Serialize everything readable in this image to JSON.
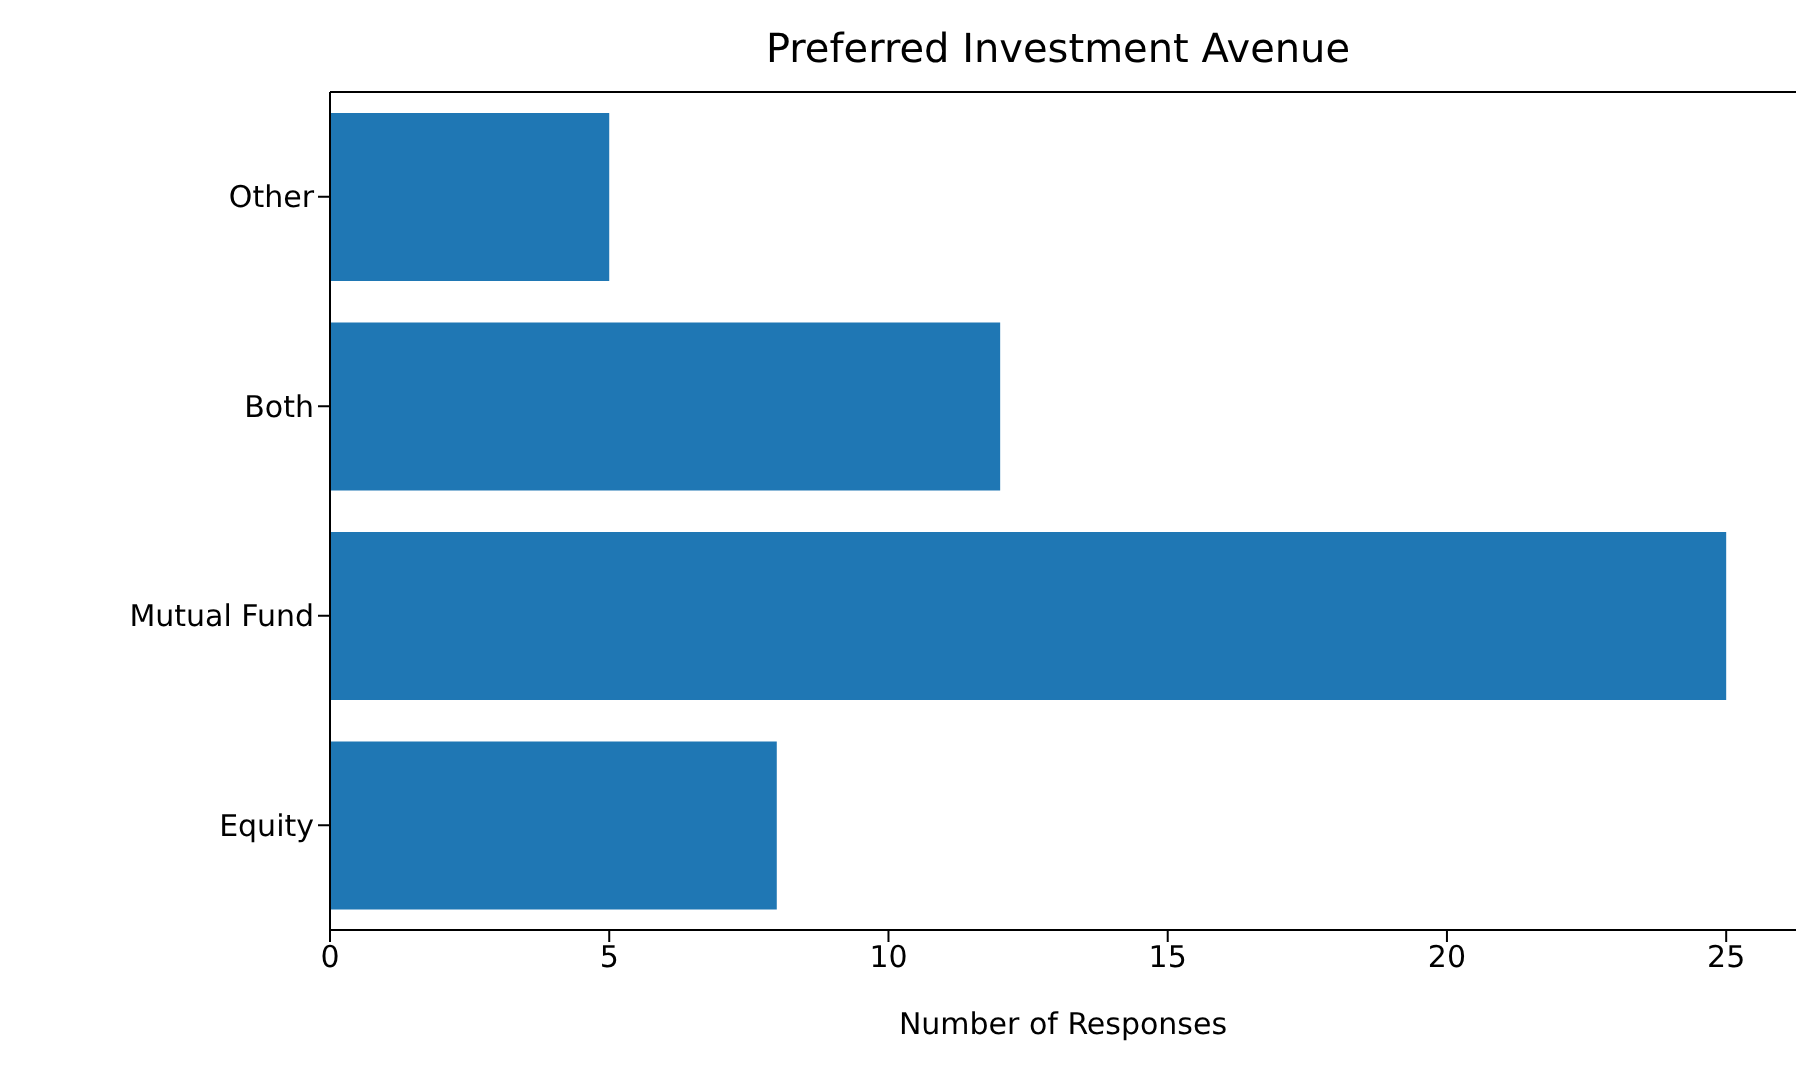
{
  "chart_data": {
    "type": "bar",
    "orientation": "horizontal",
    "title": "Preferred Investment Avenue",
    "xlabel": "Number of Responses",
    "categories": [
      "Other",
      "Both",
      "Mutual Fund",
      "Equity"
    ],
    "values": [
      5,
      12,
      25,
      8
    ],
    "color": "#1f77b4",
    "xlim": [
      0,
      26.25
    ],
    "xticks": [
      0,
      5,
      10,
      15,
      20,
      25
    ],
    "grid": false
  }
}
